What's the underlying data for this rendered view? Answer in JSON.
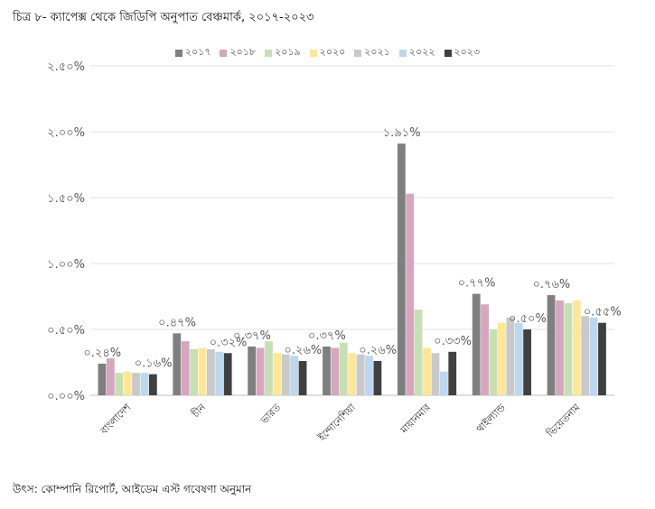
{
  "caption": "চিত্র ৮- ক্যাপেক্স থেকে জিডিপি অনুপাত বেঞ্চমার্ক, ২০১৭-২০২৩",
  "source": "উৎস: কোম্পানি রিপোর্ট, আইডেম এস্ট গবেষণা অনুমান",
  "chart_data": {
    "type": "bar",
    "title": "",
    "xlabel": "",
    "ylabel": "",
    "ylim": [
      0,
      2.5
    ],
    "yticks": [
      0,
      0.5,
      1.0,
      1.5,
      2.0,
      2.5
    ],
    "ytick_labels": [
      "০.০০%",
      "০.৫০%",
      "১.০০%",
      "১.৫০%",
      "২.০০%",
      "২.৫০%"
    ],
    "grid": true,
    "legend_position": "top",
    "categories": [
      "বাংলাদেশ",
      "চীন",
      "ভারত",
      "ইন্দোনেশিয়া",
      "মায়ানমার",
      "থাইল্যান্ড",
      "ভিয়েতনাম"
    ],
    "series": [
      {
        "name": "২০১৭",
        "color": "#7f7f7f",
        "values": [
          0.24,
          0.47,
          0.37,
          0.37,
          1.91,
          0.77,
          0.76
        ]
      },
      {
        "name": "২০১৮",
        "color": "#d5a6bd",
        "values": [
          0.28,
          0.41,
          0.36,
          0.36,
          1.53,
          0.69,
          0.72
        ]
      },
      {
        "name": "২০১৯",
        "color": "#c6e0b4",
        "values": [
          0.17,
          0.35,
          0.41,
          0.4,
          0.65,
          0.5,
          0.7
        ]
      },
      {
        "name": "২০২০",
        "color": "#ffe699",
        "values": [
          0.18,
          0.36,
          0.32,
          0.32,
          0.36,
          0.55,
          0.72
        ]
      },
      {
        "name": "২০২১",
        "color": "#c9c9c9",
        "values": [
          0.17,
          0.35,
          0.31,
          0.31,
          0.32,
          0.59,
          0.6
        ]
      },
      {
        "name": "২০২২",
        "color": "#bdd7ee",
        "values": [
          0.17,
          0.33,
          0.3,
          0.3,
          0.18,
          0.55,
          0.59
        ]
      },
      {
        "name": "২০২৩",
        "color": "#404040",
        "values": [
          0.16,
          0.32,
          0.26,
          0.26,
          0.33,
          0.5,
          0.55
        ]
      }
    ],
    "data_labels": [
      {
        "category": 0,
        "series": 0,
        "text": "০.২৪%"
      },
      {
        "category": 0,
        "series": 6,
        "text": "০.১৬%"
      },
      {
        "category": 1,
        "series": 0,
        "text": "০.৪৭%"
      },
      {
        "category": 1,
        "series": 6,
        "text": "০.৩২%"
      },
      {
        "category": 2,
        "series": 0,
        "text": "০.৩৭%"
      },
      {
        "category": 2,
        "series": 6,
        "text": "০.২৬%"
      },
      {
        "category": 3,
        "series": 0,
        "text": "০.৩৭%"
      },
      {
        "category": 3,
        "series": 6,
        "text": "০.২৬%"
      },
      {
        "category": 4,
        "series": 0,
        "text": "১.৯১%"
      },
      {
        "category": 4,
        "series": 6,
        "text": "০.৩৩%"
      },
      {
        "category": 5,
        "series": 0,
        "text": "০.৭৭%"
      },
      {
        "category": 5,
        "series": 6,
        "text": "০.৫০%"
      },
      {
        "category": 6,
        "series": 0,
        "text": "০.৭৬%"
      },
      {
        "category": 6,
        "series": 6,
        "text": "০.৫৫%"
      }
    ]
  }
}
